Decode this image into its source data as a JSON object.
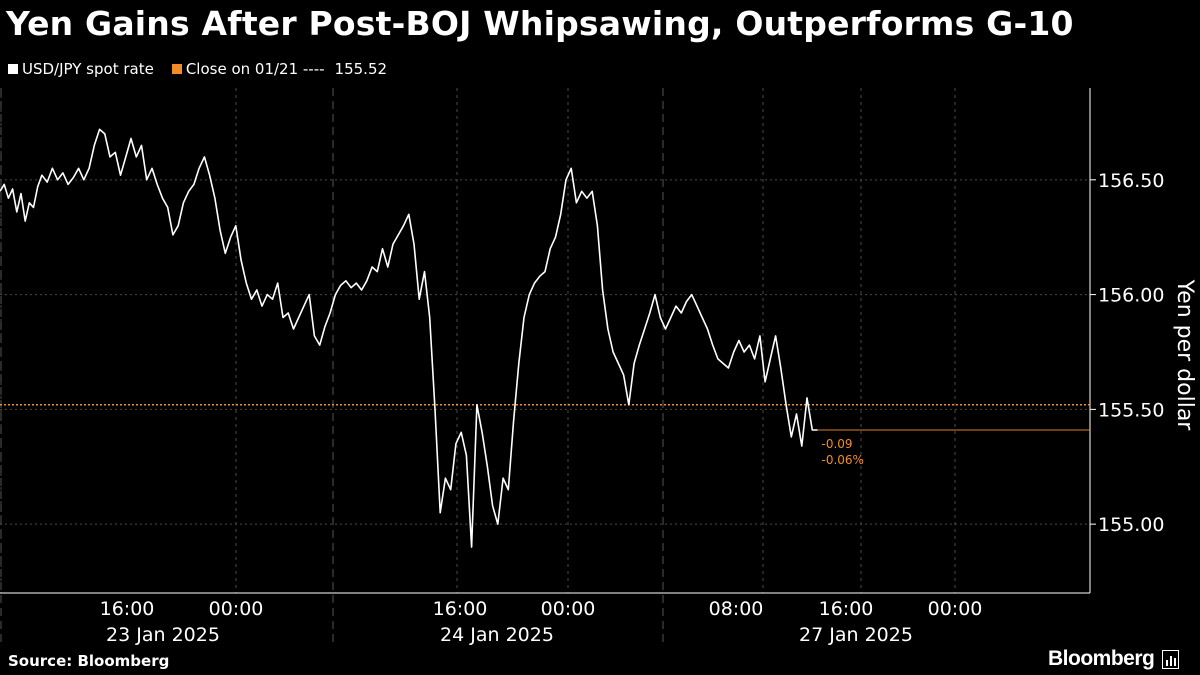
{
  "title": "Yen Gains After Post-BOJ Whipsawing, Outperforms G-10",
  "legend": {
    "series_label": "USD/JPY spot rate",
    "series_color": "#ffffff",
    "close_label": "Close on 01/21 ---- ",
    "close_value": "155.52",
    "close_color": "#f28c28"
  },
  "source": "Source: Bloomberg",
  "brand": "Bloomberg",
  "chart_data": {
    "type": "line",
    "ylabel": "Yen per dollar",
    "ylim": [
      154.7,
      156.9
    ],
    "yticks": [
      "155.00",
      "155.50",
      "156.00",
      "156.50"
    ],
    "time_labels": [
      "16:00",
      "00:00",
      "16:00",
      "00:00",
      "08:00",
      "16:00",
      "00:00"
    ],
    "date_labels": [
      "23 Jan 2025",
      "24 Jan 2025",
      "27 Jan 2025"
    ],
    "reference_line": {
      "label": "Close on 01/21",
      "value": 155.52
    },
    "change_annotation": {
      "abs": "-0.09",
      "pct": "-0.06%"
    },
    "last_value": 155.41,
    "series": [
      {
        "name": "USD/JPY spot rate",
        "points": [
          [
            0.0,
            156.45
          ],
          [
            0.4,
            156.48
          ],
          [
            0.8,
            156.42
          ],
          [
            1.2,
            156.46
          ],
          [
            1.6,
            156.36
          ],
          [
            2.0,
            156.44
          ],
          [
            2.4,
            156.32
          ],
          [
            2.8,
            156.4
          ],
          [
            3.2,
            156.38
          ],
          [
            3.6,
            156.47
          ],
          [
            4.0,
            156.52
          ],
          [
            4.5,
            156.49
          ],
          [
            5.0,
            156.55
          ],
          [
            5.5,
            156.5
          ],
          [
            6.0,
            156.53
          ],
          [
            6.5,
            156.48
          ],
          [
            7.0,
            156.51
          ],
          [
            7.5,
            156.55
          ],
          [
            8.0,
            156.5
          ],
          [
            8.5,
            156.55
          ],
          [
            9.0,
            156.65
          ],
          [
            9.5,
            156.72
          ],
          [
            10.0,
            156.7
          ],
          [
            10.5,
            156.6
          ],
          [
            11.0,
            156.62
          ],
          [
            11.5,
            156.52
          ],
          [
            12.0,
            156.6
          ],
          [
            12.5,
            156.68
          ],
          [
            13.0,
            156.6
          ],
          [
            13.5,
            156.65
          ],
          [
            14.0,
            156.5
          ],
          [
            14.5,
            156.55
          ],
          [
            15.0,
            156.48
          ],
          [
            15.5,
            156.42
          ],
          [
            16.0,
            156.38
          ],
          [
            16.5,
            156.26
          ],
          [
            17.0,
            156.3
          ],
          [
            17.5,
            156.4
          ],
          [
            18.0,
            156.45
          ],
          [
            18.5,
            156.48
          ],
          [
            19.0,
            156.55
          ],
          [
            19.5,
            156.6
          ],
          [
            20.0,
            156.52
          ],
          [
            20.5,
            156.42
          ],
          [
            21.0,
            156.28
          ],
          [
            21.5,
            156.18
          ],
          [
            22.0,
            156.25
          ],
          [
            22.5,
            156.3
          ],
          [
            23.0,
            156.15
          ],
          [
            23.5,
            156.05
          ],
          [
            24.0,
            155.98
          ],
          [
            24.5,
            156.02
          ],
          [
            25.0,
            155.95
          ],
          [
            25.5,
            156.0
          ],
          [
            26.0,
            155.98
          ],
          [
            26.5,
            156.05
          ],
          [
            27.0,
            155.9
          ],
          [
            27.5,
            155.92
          ],
          [
            28.0,
            155.85
          ],
          [
            28.5,
            155.9
          ],
          [
            29.0,
            155.95
          ],
          [
            29.5,
            156.0
          ],
          [
            30.0,
            155.82
          ],
          [
            30.5,
            155.78
          ],
          [
            31.0,
            155.86
          ],
          [
            31.5,
            155.92
          ],
          [
            32.0,
            156.0
          ],
          [
            32.5,
            156.04
          ],
          [
            33.0,
            156.06
          ],
          [
            33.5,
            156.03
          ],
          [
            34.0,
            156.05
          ],
          [
            34.5,
            156.02
          ],
          [
            35.0,
            156.06
          ],
          [
            35.5,
            156.12
          ],
          [
            36.0,
            156.1
          ],
          [
            36.5,
            156.2
          ],
          [
            37.0,
            156.12
          ],
          [
            37.5,
            156.22
          ],
          [
            38.0,
            156.26
          ],
          [
            38.5,
            156.3
          ],
          [
            39.0,
            156.35
          ],
          [
            39.5,
            156.22
          ],
          [
            40.0,
            155.98
          ],
          [
            40.5,
            156.1
          ],
          [
            41.0,
            155.9
          ],
          [
            41.5,
            155.5
          ],
          [
            42.0,
            155.05
          ],
          [
            42.5,
            155.2
          ],
          [
            43.0,
            155.15
          ],
          [
            43.5,
            155.35
          ],
          [
            44.0,
            155.4
          ],
          [
            44.5,
            155.3
          ],
          [
            45.0,
            154.9
          ],
          [
            45.5,
            155.52
          ],
          [
            46.0,
            155.4
          ],
          [
            46.5,
            155.25
          ],
          [
            47.0,
            155.08
          ],
          [
            47.5,
            155.0
          ],
          [
            48.0,
            155.2
          ],
          [
            48.5,
            155.15
          ],
          [
            49.0,
            155.45
          ],
          [
            49.5,
            155.7
          ],
          [
            50.0,
            155.9
          ],
          [
            50.5,
            156.0
          ],
          [
            51.0,
            156.05
          ],
          [
            51.5,
            156.08
          ],
          [
            52.0,
            156.1
          ],
          [
            52.5,
            156.2
          ],
          [
            53.0,
            156.25
          ],
          [
            53.5,
            156.35
          ],
          [
            54.0,
            156.5
          ],
          [
            54.5,
            156.55
          ],
          [
            55.0,
            156.4
          ],
          [
            55.5,
            156.45
          ],
          [
            56.0,
            156.42
          ],
          [
            56.5,
            156.45
          ],
          [
            57.0,
            156.3
          ],
          [
            57.5,
            156.02
          ],
          [
            58.0,
            155.85
          ],
          [
            58.5,
            155.75
          ],
          [
            59.0,
            155.7
          ],
          [
            59.5,
            155.65
          ],
          [
            60.0,
            155.52
          ],
          [
            60.5,
            155.7
          ],
          [
            61.0,
            155.78
          ],
          [
            61.5,
            155.85
          ],
          [
            62.0,
            155.92
          ],
          [
            62.5,
            156.0
          ],
          [
            63.0,
            155.9
          ],
          [
            63.5,
            155.85
          ],
          [
            64.0,
            155.9
          ],
          [
            64.5,
            155.95
          ],
          [
            65.0,
            155.92
          ],
          [
            65.5,
            155.97
          ],
          [
            66.0,
            156.0
          ],
          [
            66.5,
            155.95
          ],
          [
            67.0,
            155.9
          ],
          [
            67.5,
            155.85
          ],
          [
            68.0,
            155.78
          ],
          [
            68.5,
            155.72
          ],
          [
            69.0,
            155.7
          ],
          [
            69.5,
            155.68
          ],
          [
            70.0,
            155.75
          ],
          [
            70.5,
            155.8
          ],
          [
            71.0,
            155.75
          ],
          [
            71.5,
            155.78
          ],
          [
            72.0,
            155.72
          ],
          [
            72.5,
            155.82
          ],
          [
            73.0,
            155.62
          ],
          [
            73.5,
            155.72
          ],
          [
            74.0,
            155.82
          ],
          [
            74.5,
            155.68
          ],
          [
            75.0,
            155.52
          ],
          [
            75.5,
            155.38
          ],
          [
            76.0,
            155.48
          ],
          [
            76.5,
            155.34
          ],
          [
            77.0,
            155.55
          ],
          [
            77.5,
            155.41
          ],
          [
            78.0,
            155.41
          ],
          [
            82.0,
            155.41
          ],
          [
            86.0,
            155.41
          ],
          [
            90.0,
            155.41
          ],
          [
            94.0,
            155.41
          ],
          [
            100.0,
            155.41
          ],
          [
            104.0,
            155.41
          ]
        ]
      }
    ]
  }
}
